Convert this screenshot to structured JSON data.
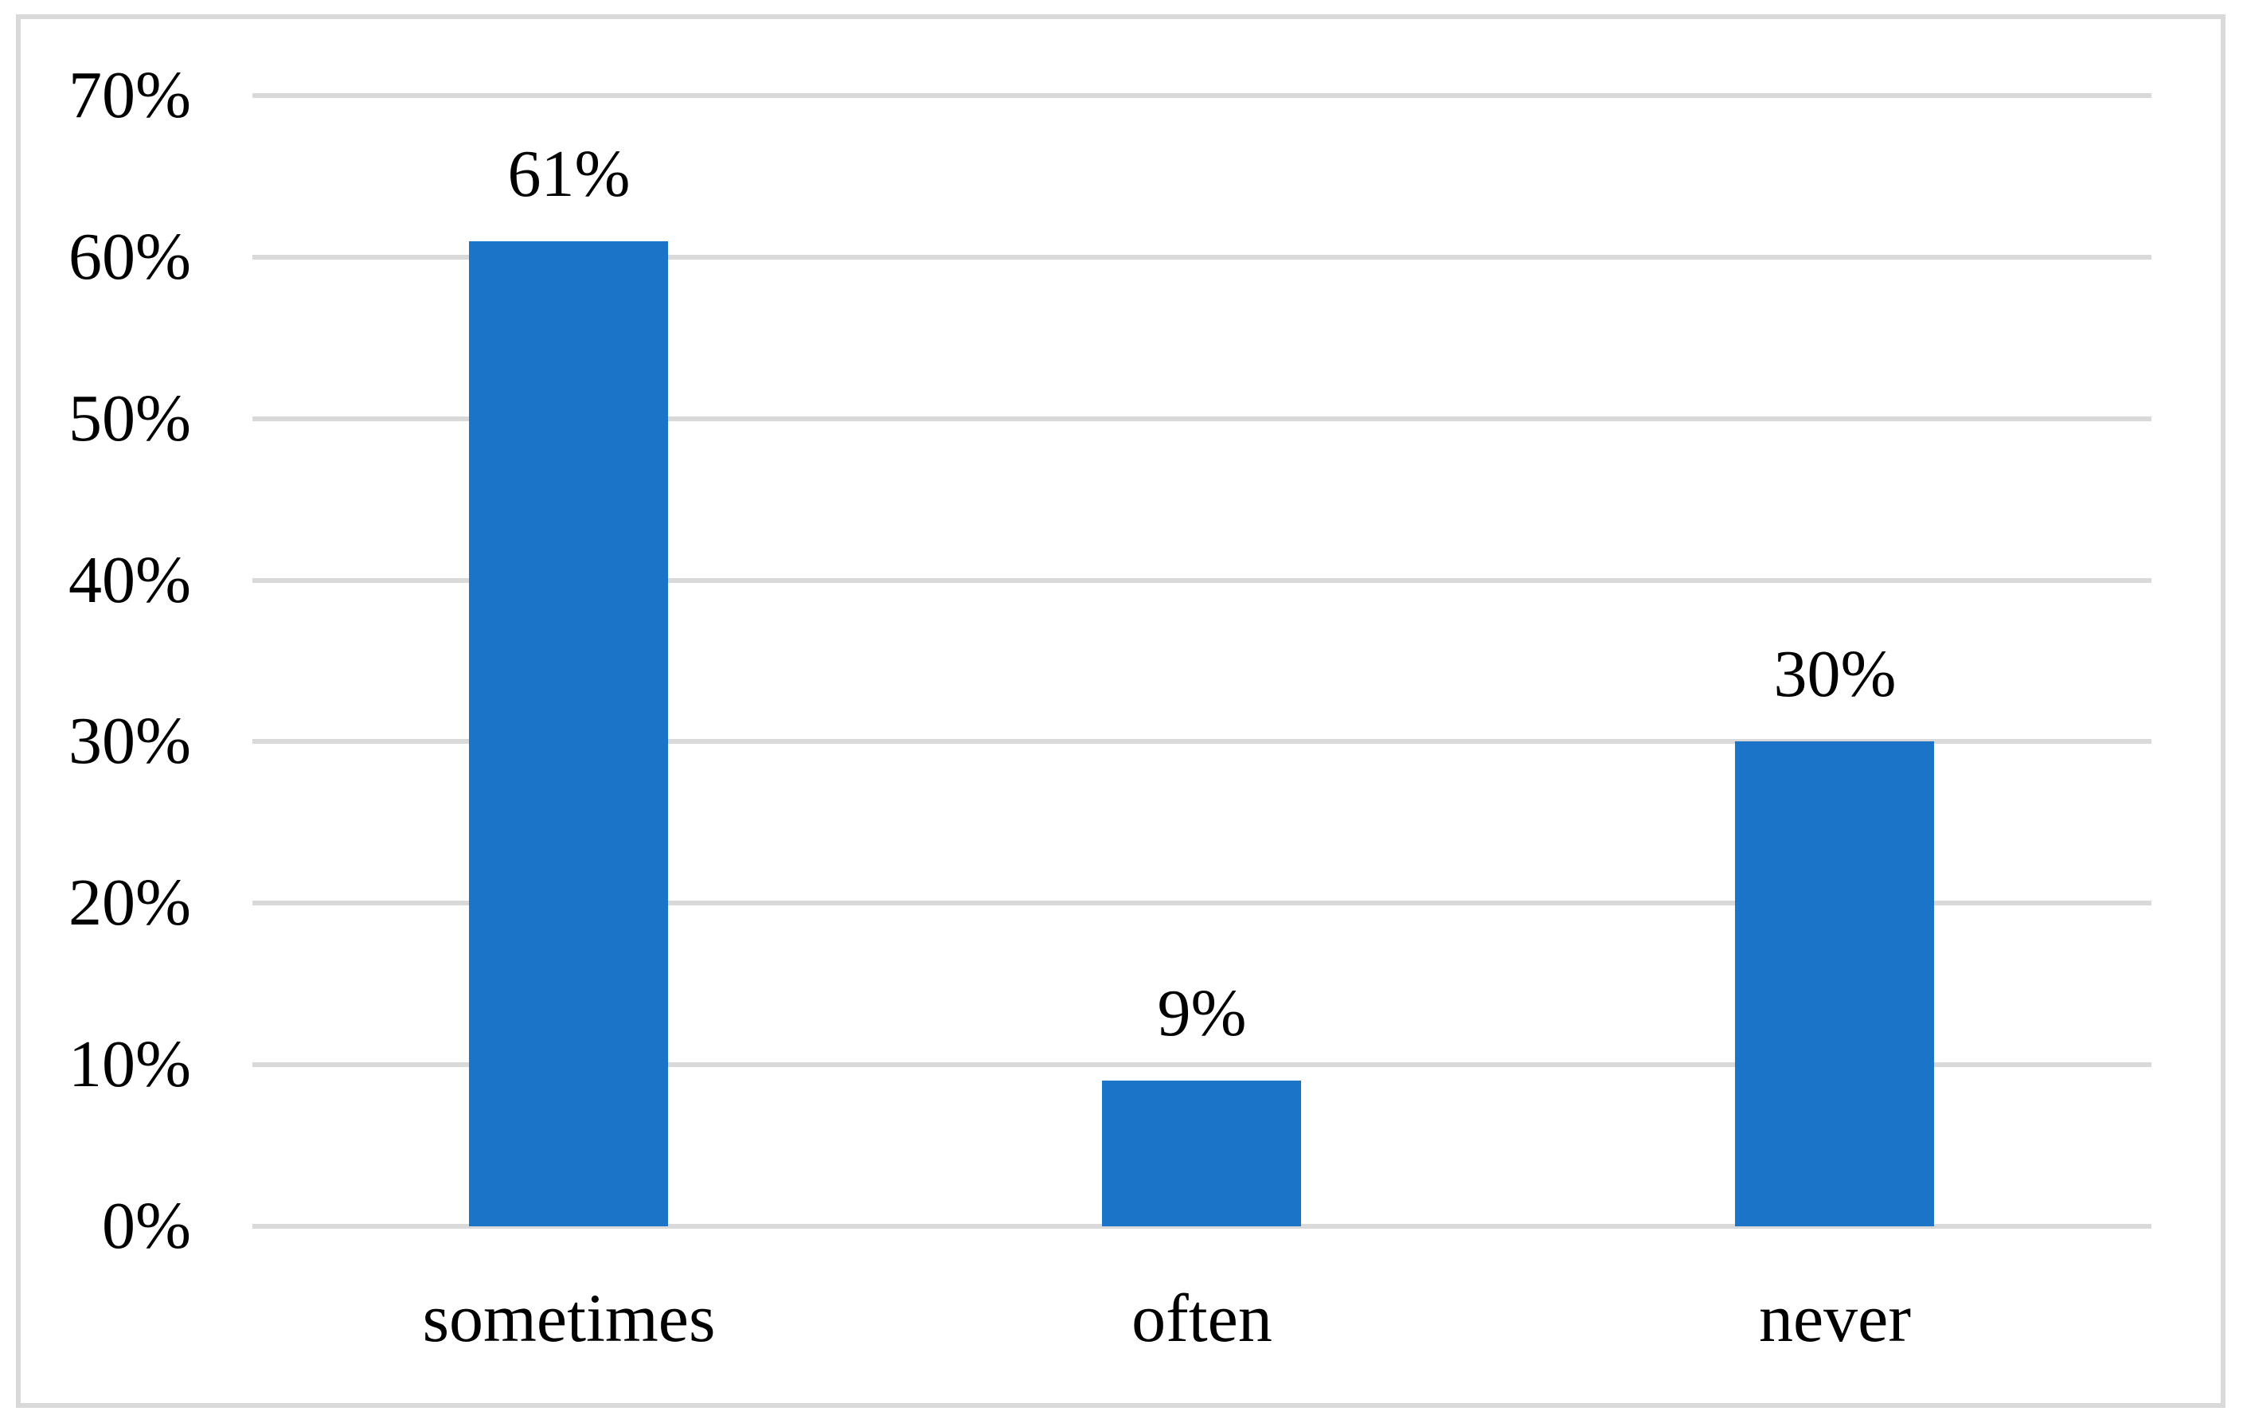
{
  "chart_data": {
    "type": "bar",
    "title": "",
    "categories": [
      "sometimes",
      "often",
      "never"
    ],
    "values": [
      61,
      9,
      30
    ],
    "data_labels": [
      "61%",
      "9%",
      "30%"
    ],
    "yticks": [
      "70%",
      "60%",
      "50%",
      "40%",
      "30%",
      "20%",
      "10%",
      "0%"
    ],
    "ylim": [
      0,
      70
    ],
    "ytick_step": 10,
    "xlabel": "",
    "ylabel": "",
    "grid": "horizontal",
    "legend": "none",
    "colors": {
      "bar": "#1B74C8",
      "gridline": "#D9D9D9",
      "frame_border": "#D9D9D9",
      "background": "#FFFFFF",
      "text": "#000000"
    }
  }
}
